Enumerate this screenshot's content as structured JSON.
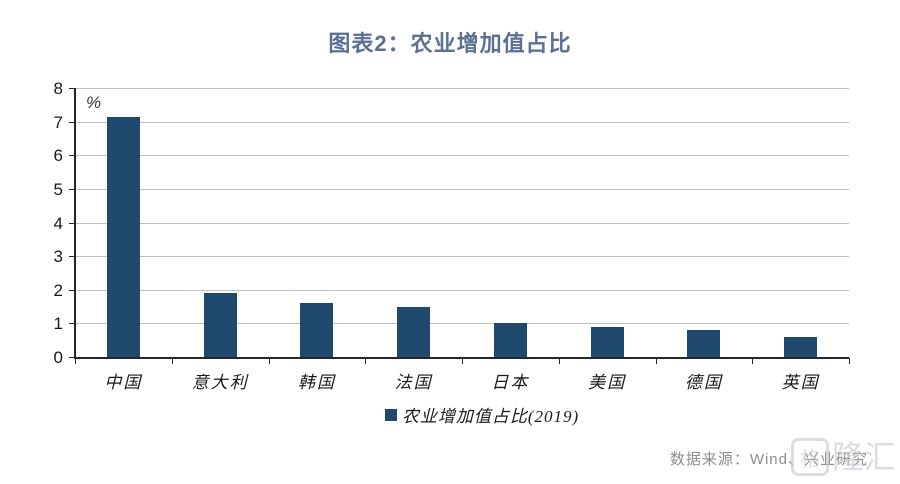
{
  "page": {
    "source_note": "数据来源：Wind、兴业研究",
    "watermark_box_glyph": "格",
    "watermark_text": "隆汇"
  },
  "chart_data": {
    "type": "bar",
    "title": "图表2：农业增加值占比",
    "unit_label": "%",
    "categories": [
      "中国",
      "意大利",
      "韩国",
      "法国",
      "日本",
      "美国",
      "德国",
      "英国"
    ],
    "values": [
      7.15,
      1.9,
      1.6,
      1.5,
      1.0,
      0.9,
      0.8,
      0.6
    ],
    "series": [
      {
        "name": "农业增加值占比(2019)",
        "values": [
          7.15,
          1.9,
          1.6,
          1.5,
          1.0,
          0.9,
          0.8,
          0.6
        ]
      }
    ],
    "legend": [
      "农业增加值占比(2019)"
    ],
    "legend_position": "bottom",
    "xlabel": "",
    "ylabel": "%",
    "ylim": [
      0,
      8
    ],
    "yticks": [
      0,
      1,
      2,
      3,
      4,
      5,
      6,
      7,
      8
    ],
    "grid": "horizontal",
    "bar_color": "#1f4a6e",
    "title_color": "#5d7094",
    "gridline_color": "#c0c0c0"
  }
}
